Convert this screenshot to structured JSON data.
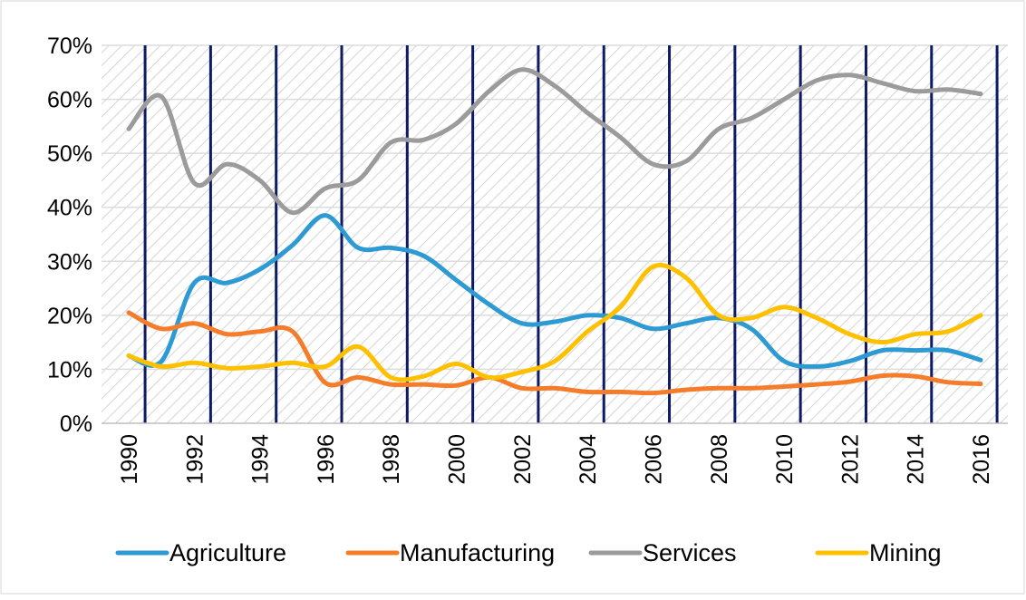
{
  "chart_data": {
    "type": "line",
    "title": "",
    "xlabel": "",
    "ylabel": "",
    "x": [
      1990,
      1991,
      1992,
      1993,
      1994,
      1995,
      1996,
      1997,
      1998,
      1999,
      2000,
      2001,
      2002,
      2003,
      2004,
      2005,
      2006,
      2007,
      2008,
      2009,
      2010,
      2011,
      2012,
      2013,
      2014,
      2015,
      2016
    ],
    "xlim": [
      1990,
      2016
    ],
    "ylim": [
      0,
      70
    ],
    "y_ticks": [
      {
        "value": 0,
        "label": "0%"
      },
      {
        "value": 10,
        "label": "10%"
      },
      {
        "value": 20,
        "label": "20%"
      },
      {
        "value": 30,
        "label": "30%"
      },
      {
        "value": 40,
        "label": "40%"
      },
      {
        "value": 50,
        "label": "50%"
      },
      {
        "value": 60,
        "label": "60%"
      },
      {
        "value": 70,
        "label": "70%"
      }
    ],
    "x_tick_labels": [
      "1990",
      "1992",
      "1994",
      "1996",
      "1998",
      "2000",
      "2002",
      "2004",
      "2006",
      "2008",
      "2010",
      "2012",
      "2014",
      "2016"
    ],
    "vertical_markers": [
      1990.5,
      1992.5,
      1994.5,
      1996.5,
      1998.5,
      2000.5,
      2002.5,
      2004.5,
      2006.5,
      2008.5,
      2010.5,
      2012.5,
      2014.5,
      2016.5
    ],
    "grid": true,
    "legend_position": "bottom",
    "series": [
      {
        "name": "Agriculture",
        "color": "#2e9ad4",
        "values": [
          12.5,
          11.5,
          26,
          26,
          28.5,
          33,
          38.5,
          32.5,
          32.5,
          31,
          26.5,
          22,
          18.5,
          18.8,
          20,
          19.5,
          17.5,
          18.5,
          19.5,
          17.5,
          11.5,
          10.5,
          11.5,
          13.5,
          13.5,
          13.5,
          11.7
        ]
      },
      {
        "name": "Manufacturing",
        "color": "#f57c2a",
        "values": [
          20.5,
          17.5,
          18.5,
          16.5,
          17,
          17,
          7.5,
          8.5,
          7.2,
          7.2,
          7,
          8.5,
          6.5,
          6.5,
          5.8,
          5.8,
          5.6,
          6.2,
          6.5,
          6.5,
          6.8,
          7.2,
          7.7,
          8.8,
          8.7,
          7.6,
          7.3
        ]
      },
      {
        "name": "Services",
        "color": "#9b9b9b",
        "values": [
          54.5,
          60.5,
          44.5,
          48,
          45,
          39,
          43.5,
          45,
          52,
          52.5,
          55.5,
          61.5,
          65.5,
          62.5,
          57.5,
          53,
          48,
          48.5,
          54.5,
          56.5,
          60,
          63.5,
          64.5,
          63,
          61.5,
          61.8,
          61
        ]
      },
      {
        "name": "Mining",
        "color": "#ffc000",
        "values": [
          12.5,
          10.5,
          11.2,
          10.2,
          10.5,
          11.2,
          10.5,
          14.2,
          8.5,
          8.7,
          11,
          8.5,
          9.5,
          11.5,
          17,
          21.5,
          29,
          27,
          20,
          19.5,
          21.5,
          19.5,
          16.5,
          15,
          16.5,
          17,
          20
        ]
      }
    ]
  }
}
